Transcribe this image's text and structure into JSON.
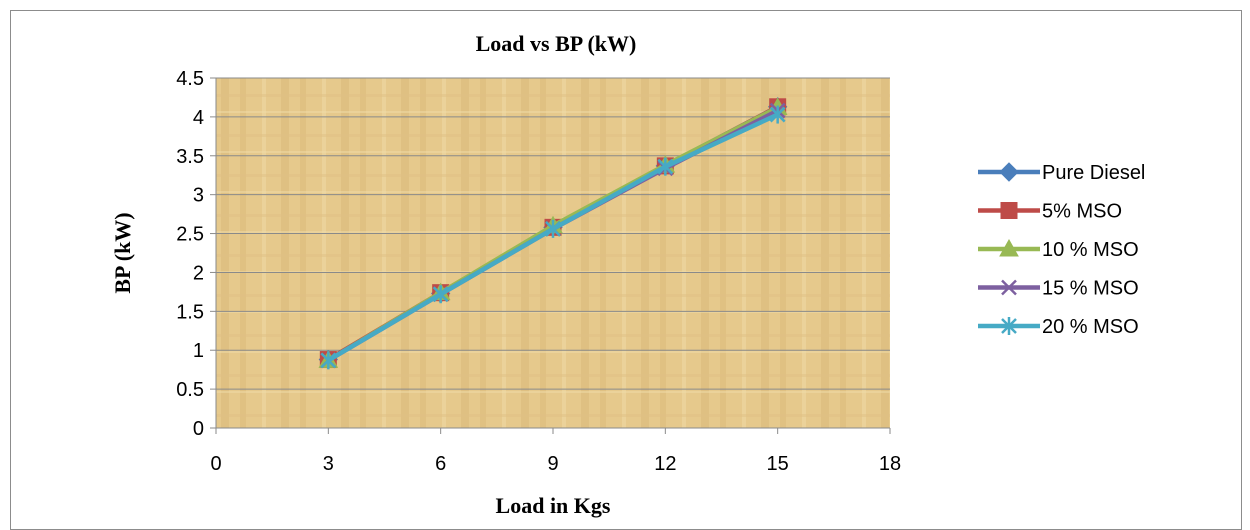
{
  "chart_data": {
    "type": "line",
    "title": "Load vs BP (kW)",
    "xlabel": "Load in Kgs",
    "ylabel": "BP (kW)",
    "xlim": [
      0,
      18
    ],
    "ylim": [
      0,
      4.5
    ],
    "x_ticks": [
      "0",
      "3",
      "6",
      "9",
      "12",
      "15",
      "18"
    ],
    "y_ticks": [
      "0",
      "0.5",
      "1",
      "1.5",
      "2",
      "2.5",
      "3",
      "3.5",
      "4",
      "4.5"
    ],
    "grid": "horizontal",
    "legend_position": "right",
    "plot_background": "textured tan",
    "x": [
      3,
      6,
      9,
      12,
      15
    ],
    "series": [
      {
        "name": "Pure Diesel",
        "values": [
          0.88,
          1.73,
          2.58,
          3.37,
          4.13
        ],
        "color": "#4a7ebb",
        "marker": "diamond"
      },
      {
        "name": "5% MSO",
        "values": [
          0.88,
          1.74,
          2.58,
          3.37,
          4.13
        ],
        "color": "#be4b48",
        "marker": "square"
      },
      {
        "name": "10 % MSO",
        "values": [
          0.87,
          1.74,
          2.6,
          3.38,
          4.12
        ],
        "color": "#98b954",
        "marker": "triangle"
      },
      {
        "name": "15 % MSO",
        "values": [
          0.87,
          1.72,
          2.56,
          3.34,
          4.08
        ],
        "color": "#7d60a0",
        "marker": "x"
      },
      {
        "name": "20 % MSO",
        "values": [
          0.87,
          1.72,
          2.56,
          3.36,
          4.03
        ],
        "color": "#46aac5",
        "marker": "star"
      }
    ]
  }
}
